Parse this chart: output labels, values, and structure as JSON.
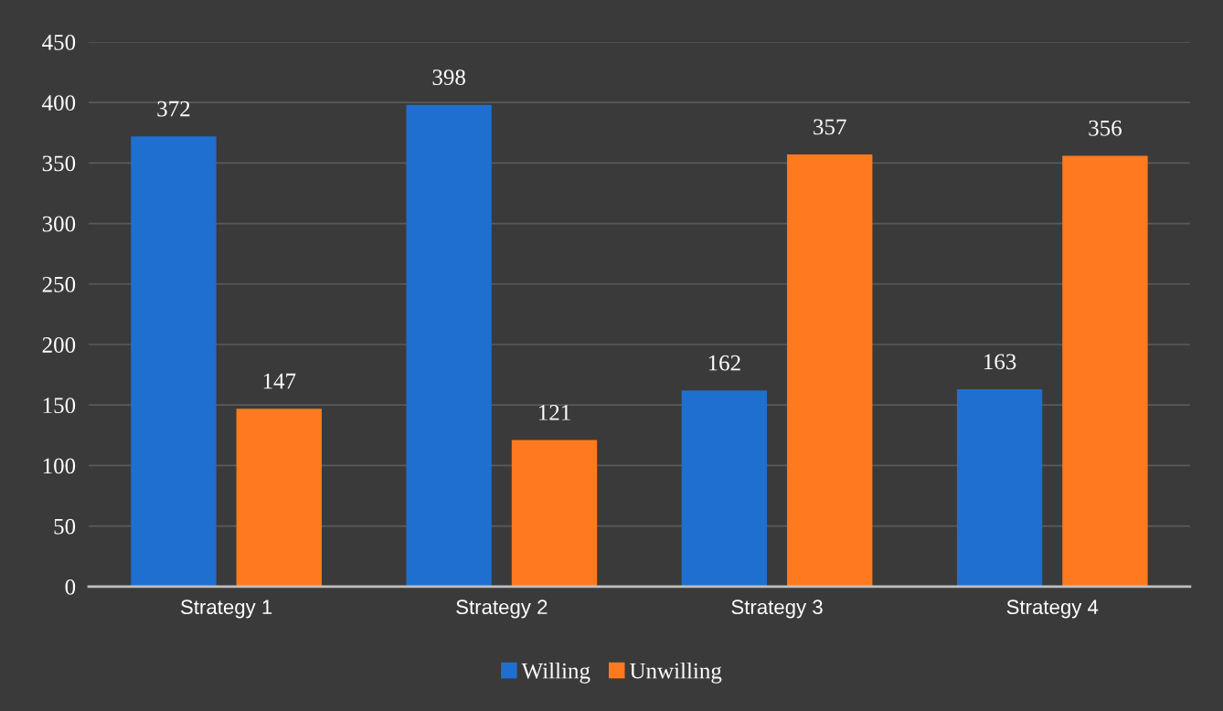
{
  "chart_data": {
    "type": "bar",
    "categories": [
      "Strategy 1",
      "Strategy 2",
      "Strategy 3",
      "Strategy 4"
    ],
    "series": [
      {
        "name": "Willing",
        "color": "#1f6fd0",
        "values": [
          372,
          398,
          162,
          163
        ]
      },
      {
        "name": "Unwilling",
        "color": "#ff7a1f",
        "values": [
          147,
          121,
          357,
          356
        ]
      }
    ],
    "ylim": [
      0,
      450
    ],
    "yticks": [
      0,
      50,
      100,
      150,
      200,
      250,
      300,
      350,
      400,
      450
    ],
    "grid": "y",
    "legend": "bottom",
    "data_labels": true
  }
}
